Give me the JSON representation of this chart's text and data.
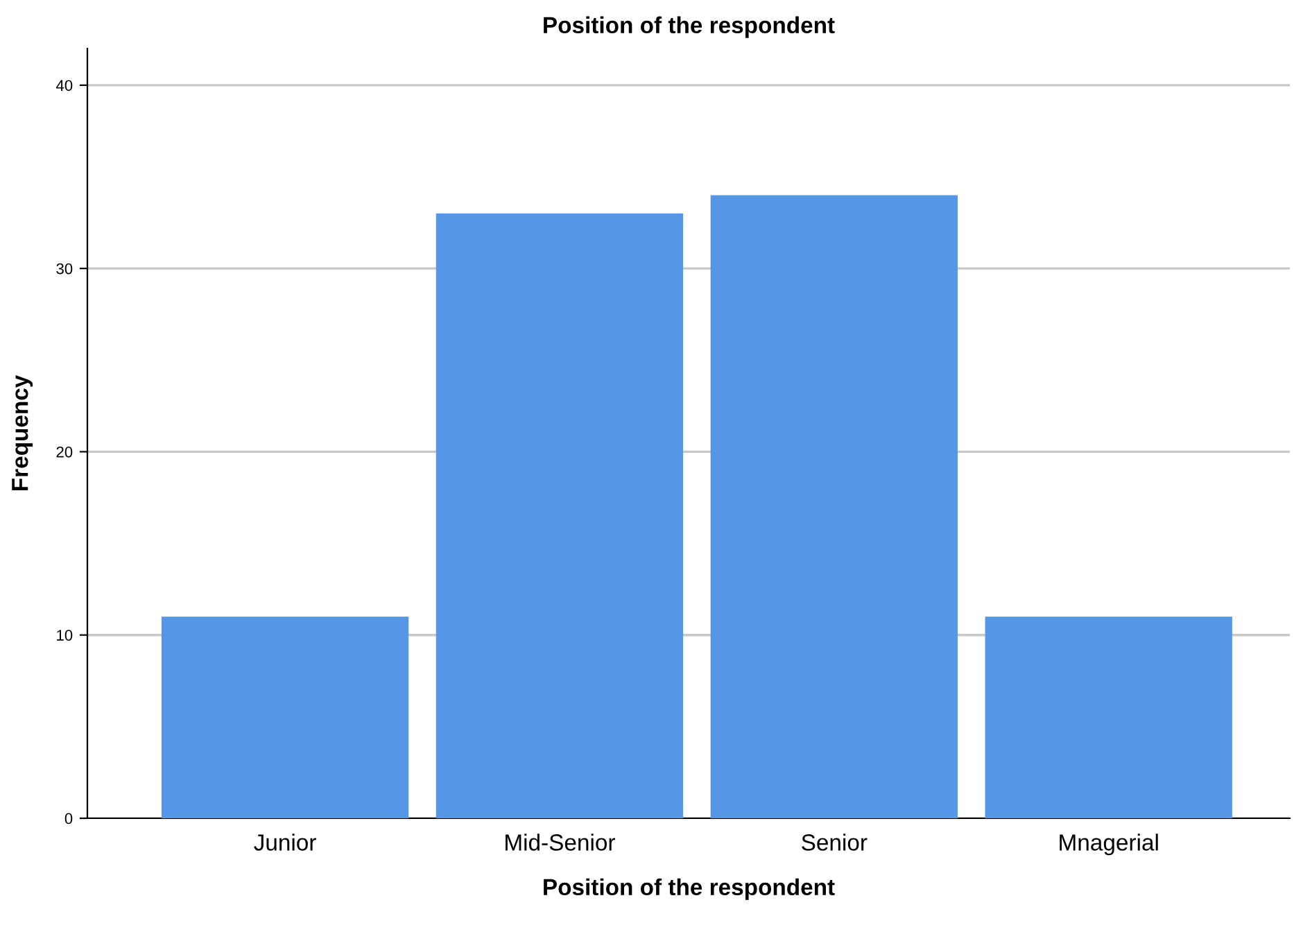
{
  "chart_data": {
    "type": "bar",
    "title": "Position of the respondent",
    "xlabel": "Position of the respondent",
    "ylabel": "Frequency",
    "categories": [
      "Junior",
      "Mid-Senior",
      "Senior",
      "Mnagerial"
    ],
    "values": [
      11,
      33,
      34,
      11
    ],
    "color": "#5596e6",
    "ylim": [
      0,
      42
    ],
    "yticks": [
      0,
      10,
      20,
      30,
      40
    ],
    "grid": "y"
  }
}
